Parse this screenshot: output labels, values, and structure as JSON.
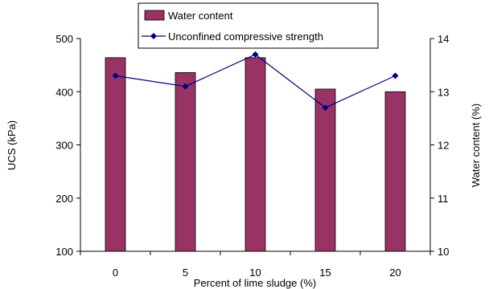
{
  "chart_data": {
    "type": "bar",
    "categories": [
      "0",
      "5",
      "10",
      "15",
      "20"
    ],
    "xlabel": "Percent of lime sludge (%)",
    "ylabel": "UCS (kPa)",
    "y2label": "Water content (%)",
    "ylim": [
      100,
      500
    ],
    "y2lim": [
      10,
      14
    ],
    "yticks": [
      "100",
      "200",
      "300",
      "400",
      "500"
    ],
    "y2ticks": [
      "10",
      "11",
      "12",
      "13",
      "14"
    ],
    "grid": false,
    "legend_position": "top",
    "series": [
      {
        "name": "Water content",
        "type": "bar",
        "axis": "left",
        "values": [
          464,
          436,
          464,
          405,
          400
        ],
        "color": "#993366"
      },
      {
        "name": "Unconfined compressive strength",
        "type": "line",
        "axis": "right",
        "values": [
          13.3,
          13.1,
          13.7,
          12.7,
          13.3
        ],
        "color": "#000080"
      }
    ]
  }
}
